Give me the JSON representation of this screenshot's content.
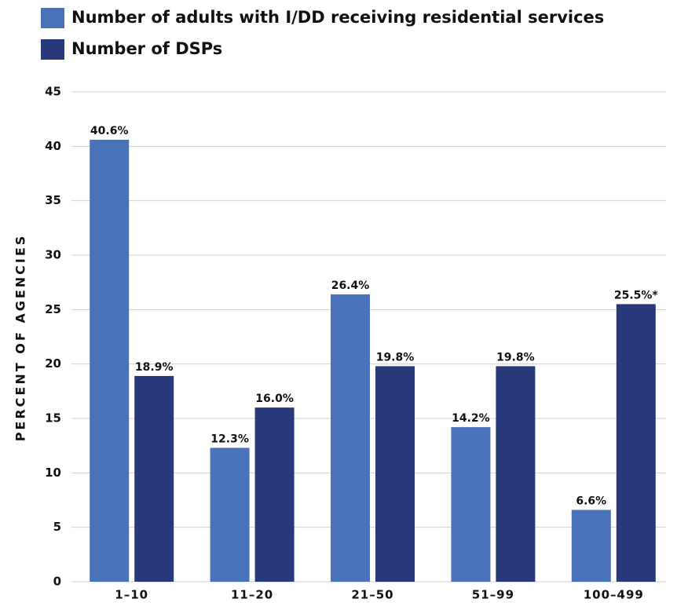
{
  "chart_data": {
    "type": "bar",
    "y_axis_label": "PERCENT OF AGENCIES",
    "categories": [
      "1–10",
      "11–20",
      "21–50",
      "51–99",
      "100–499"
    ],
    "series": [
      {
        "name": "Number of adults with I/DD receiving residential services",
        "color": "#4a72b8",
        "values": [
          40.6,
          12.3,
          26.4,
          14.2,
          6.6
        ],
        "value_labels": [
          "40.6%",
          "12.3%",
          "26.4%",
          "14.2%",
          "6.6%"
        ]
      },
      {
        "name": "Number of DSPs",
        "color": "#27397a",
        "values": [
          18.9,
          16.0,
          19.8,
          19.8,
          25.5
        ],
        "value_labels": [
          "18.9%",
          "16.0%",
          "19.8%",
          "19.8%",
          "25.5%*"
        ]
      }
    ],
    "ylim": [
      0,
      45
    ],
    "yticks": [
      0,
      5,
      10,
      15,
      20,
      25,
      30,
      35,
      40,
      45
    ],
    "grid": true,
    "legend": "top"
  }
}
